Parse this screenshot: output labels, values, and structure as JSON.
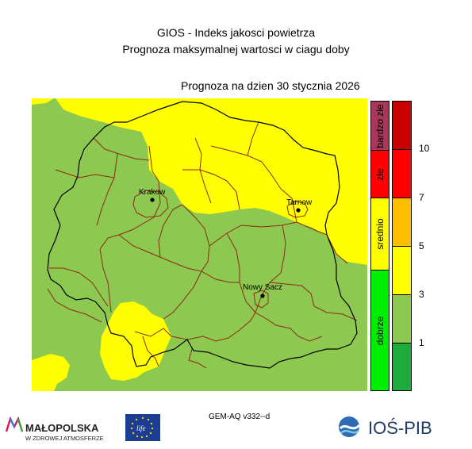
{
  "header": {
    "title": "GIOS - Indeks jakosci powietrza",
    "subtitle": "Prognoza maksymalnej wartosci w ciagu doby",
    "date_line": "Prognoza na dzien  30 stycznia 2026"
  },
  "map": {
    "cities": [
      {
        "name": "Krakow"
      },
      {
        "name": "Tarnow"
      },
      {
        "name": "Nowy Sacz"
      }
    ],
    "colors": {
      "dobrze": "#8dc850",
      "srednio": "#ffff00",
      "land_border": "#000000",
      "county_border": "#8b2a14"
    }
  },
  "legend": {
    "categories": [
      {
        "label": "bardzo złe",
        "color": "#a8375a"
      },
      {
        "label": "złe",
        "color": "#ff0000"
      },
      {
        "label": "srednio",
        "color": "#ffff00"
      },
      {
        "label": "dobrze",
        "color": "#00ee00"
      }
    ]
  },
  "scale": {
    "colors": [
      "#c80000",
      "#ff0000",
      "#ffbf00",
      "#ffff00",
      "#8dc850",
      "#1eaa3c"
    ],
    "ticks": [
      "10",
      "7",
      "5",
      "3",
      "1"
    ]
  },
  "footer": {
    "model": "GEM-AQ v332--d",
    "logo_malopolska_line1": "MAŁOPOLSKA",
    "logo_malopolska_line2": "W ZDROWEJ ATMOSFERZE",
    "logo_eu_text": "life",
    "logo_ios_text": "IOŚ-PIB"
  }
}
